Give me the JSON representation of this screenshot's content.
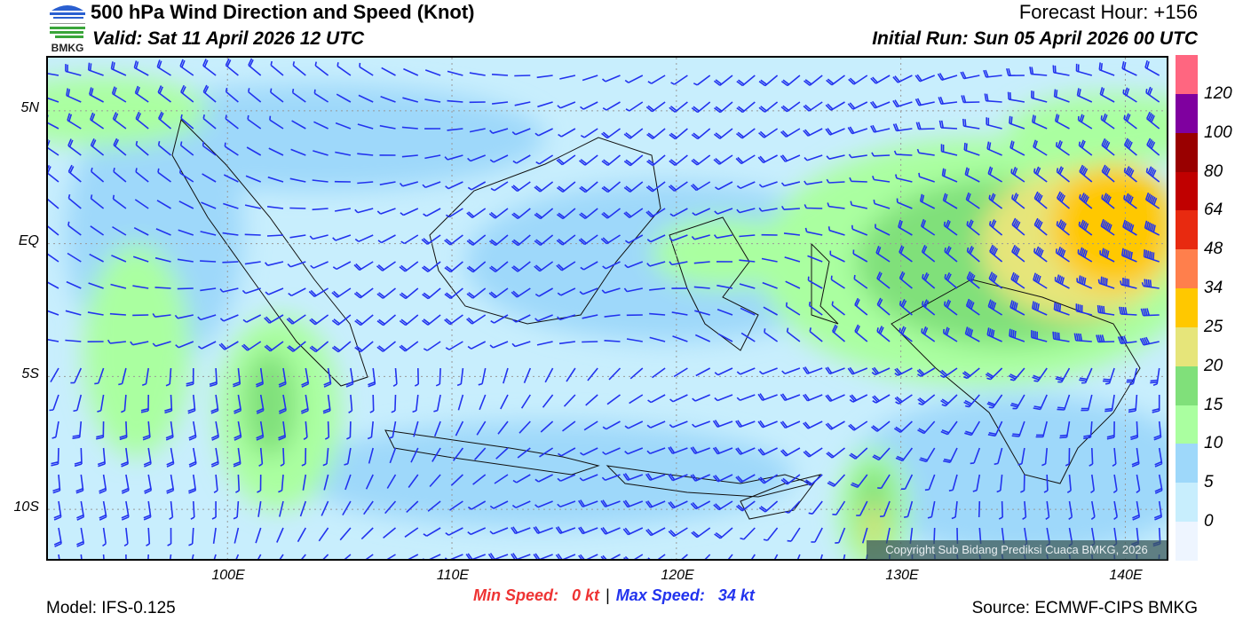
{
  "header": {
    "title": "500 hPa Wind Direction and Speed (Knot)",
    "valid": "Valid: Sat 11 April 2026 12 UTC",
    "forecast_hour": "Forecast Hour: +156",
    "initial_run": "Initial Run: Sun 05 April 2026 00 UTC",
    "logo_text": "BMKG"
  },
  "map": {
    "lat_labels": [
      "5N",
      "EQ",
      "5S",
      "10S"
    ],
    "lon_labels": [
      "100E",
      "110E",
      "120E",
      "130E",
      "140E"
    ],
    "extent": {
      "lon": [
        92,
        142
      ],
      "lat": [
        -12,
        7
      ]
    },
    "copyright": "Copyright Sub Bidang Prediksi Cuaca BMKG, 2026",
    "barb_color": "#2233ee"
  },
  "colorbar": {
    "unit": "Knot",
    "labels": [
      "120",
      "100",
      "80",
      "64",
      "48",
      "34",
      "25",
      "20",
      "15",
      "10",
      "5",
      "0"
    ],
    "colors": [
      "#ff6680",
      "#7f009f",
      "#990000",
      "#c00000",
      "#e82a10",
      "#ff7f4c",
      "#ffc800",
      "#e6e57a",
      "#80e07a",
      "#aaffa0",
      "#9ed8fa",
      "#c8eefd",
      "#eef5ff"
    ]
  },
  "footer": {
    "min_label": "Min Speed:",
    "min_value": "0 kt",
    "separator": "|",
    "max_label": "Max Speed:",
    "max_value": "34 kt",
    "min_color": "#ee3333",
    "max_color": "#2233ee",
    "model": "Model: IFS-0.125",
    "source": "Source: ECMWF-CIPS BMKG"
  }
}
